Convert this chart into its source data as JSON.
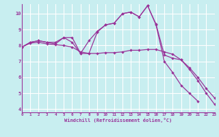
{
  "background_color": "#c8eef0",
  "grid_color": "#ffffff",
  "line_color": "#993399",
  "xlabel": "Windchill (Refroidissement éolien,°C)",
  "xlim": [
    0,
    23
  ],
  "ylim": [
    3.8,
    10.6
  ],
  "yticks": [
    4,
    5,
    6,
    7,
    8,
    9,
    10
  ],
  "xticks": [
    0,
    1,
    2,
    3,
    4,
    5,
    6,
    7,
    8,
    9,
    10,
    11,
    12,
    13,
    14,
    15,
    16,
    17,
    18,
    19,
    20,
    21,
    22,
    23
  ],
  "series": [
    [
      7.9,
      8.2,
      8.3,
      8.2,
      8.2,
      8.5,
      8.5,
      7.5,
      7.5,
      8.85,
      9.3,
      9.4,
      10.0,
      10.1,
      9.8,
      10.5,
      9.3,
      7.0,
      6.3,
      5.5,
      5.0,
      4.5
    ],
    [
      7.9,
      8.15,
      8.2,
      8.1,
      8.05,
      8.0,
      7.9,
      7.6,
      7.5,
      7.5,
      7.55,
      7.55,
      7.6,
      7.7,
      7.7,
      7.75,
      7.75,
      7.6,
      7.45,
      7.1,
      6.5,
      5.8,
      5.0,
      4.3
    ],
    [
      7.9,
      8.2,
      8.3,
      8.2,
      8.1,
      8.5,
      8.2,
      7.5,
      8.3,
      8.9,
      9.3,
      9.4,
      10.0,
      10.1,
      9.8,
      10.5,
      9.35,
      7.4,
      7.2,
      7.1,
      6.6,
      6.0,
      5.3,
      4.7
    ]
  ],
  "series_x": [
    [
      0,
      1,
      2,
      3,
      4,
      5,
      6,
      7,
      8,
      9,
      10,
      11,
      12,
      13,
      14,
      15,
      16,
      17,
      18,
      19,
      20,
      21
    ],
    [
      0,
      1,
      2,
      3,
      4,
      5,
      6,
      7,
      8,
      9,
      10,
      11,
      12,
      13,
      14,
      15,
      16,
      17,
      18,
      19,
      20,
      21,
      22,
      23
    ],
    [
      0,
      1,
      2,
      3,
      4,
      5,
      6,
      7,
      8,
      9,
      10,
      11,
      12,
      13,
      14,
      15,
      16,
      17,
      18,
      19,
      20,
      21,
      22,
      23
    ]
  ]
}
